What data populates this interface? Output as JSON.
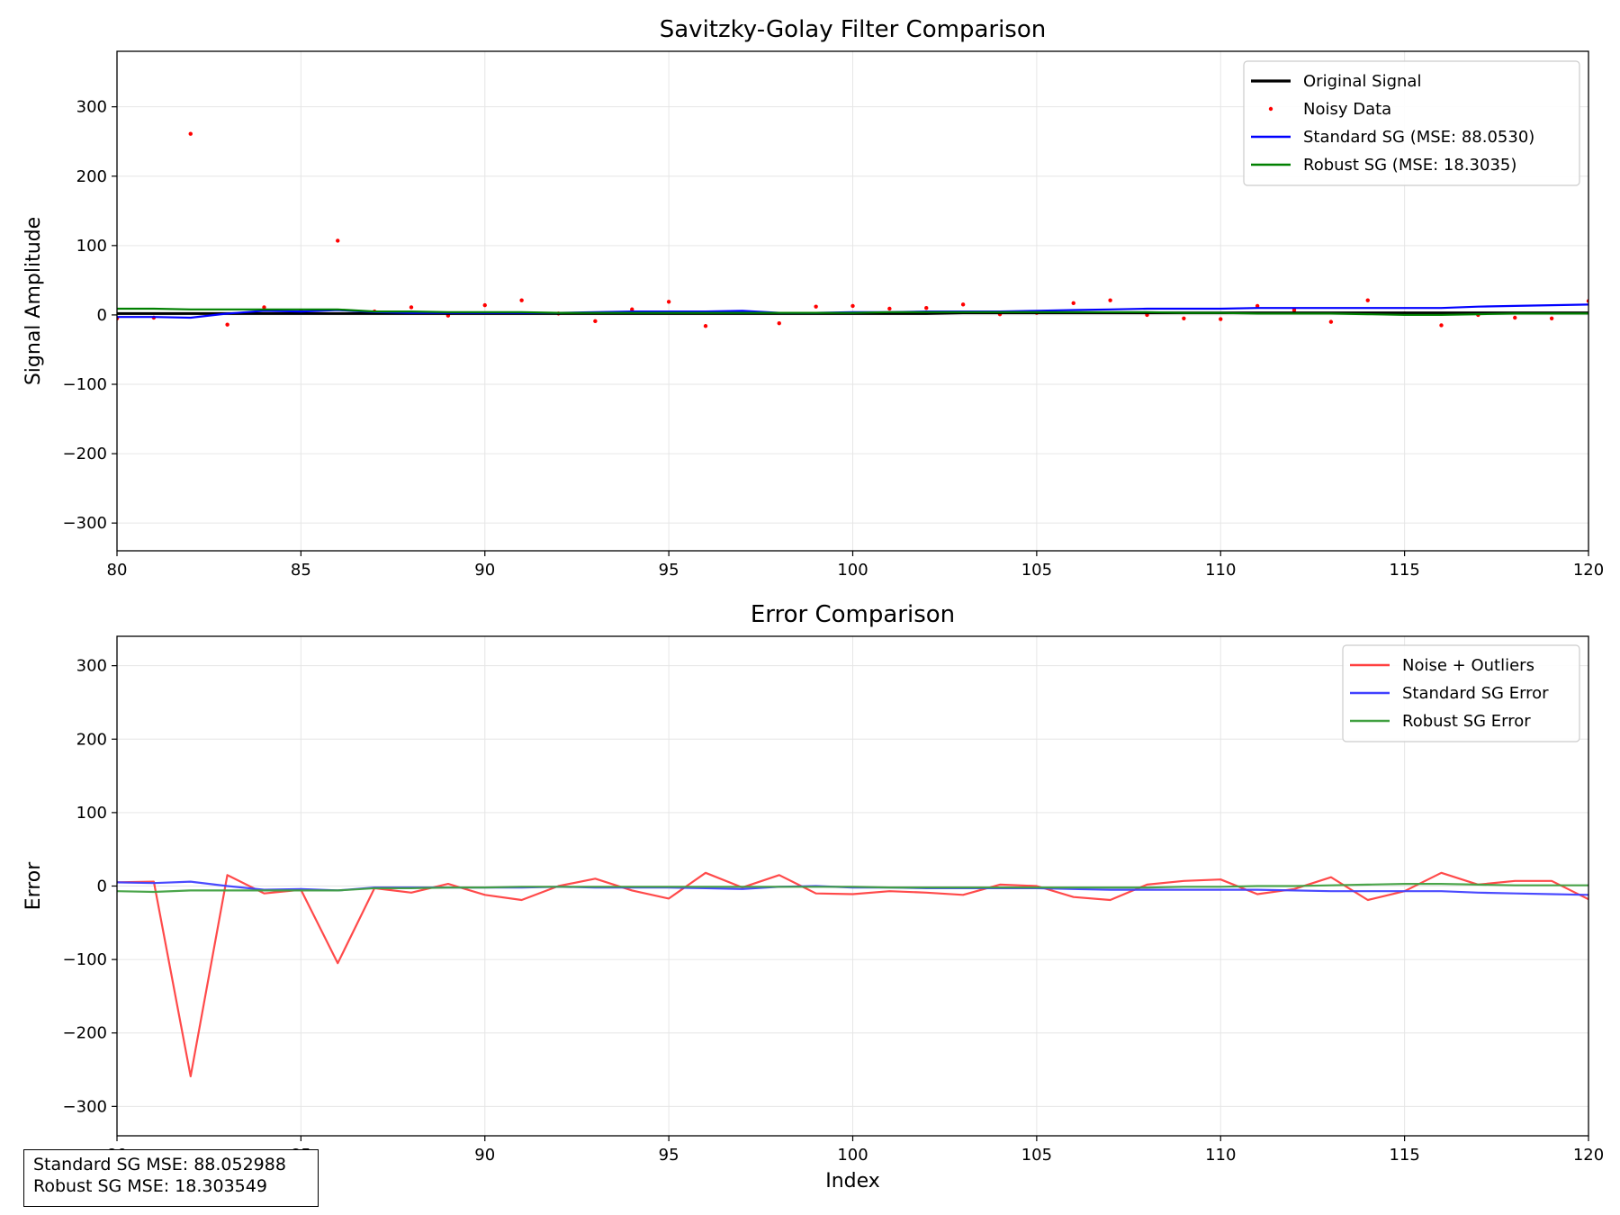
{
  "chart_data": [
    {
      "type": "line",
      "title": "Savitzky-Golay Filter Comparison",
      "xlabel": "",
      "ylabel": "Signal Amplitude",
      "xlim": [
        80,
        120
      ],
      "ylim": [
        -340,
        380
      ],
      "xticks": [
        "80",
        "85",
        "90",
        "95",
        "100",
        "105",
        "110",
        "115",
        "120"
      ],
      "yticks": [
        "−300",
        "−200",
        "−100",
        "0",
        "100",
        "200",
        "300"
      ],
      "grid": true,
      "legend_position": "upper right",
      "series": [
        {
          "name": "Original Signal",
          "color": "#000000",
          "style": "line",
          "x": [
            80,
            81,
            82,
            83,
            84,
            85,
            86,
            87,
            88,
            89,
            90,
            91,
            92,
            93,
            94,
            95,
            96,
            97,
            98,
            99,
            100,
            101,
            102,
            103,
            104,
            105,
            106,
            107,
            108,
            109,
            110,
            111,
            112,
            113,
            114,
            115,
            116,
            117,
            118,
            119,
            120
          ],
          "y": [
            2,
            2,
            2,
            2,
            2,
            2,
            2,
            2,
            2,
            2,
            2,
            2,
            2,
            2,
            2,
            2,
            2,
            2,
            2,
            2,
            2,
            2,
            2,
            3,
            3,
            3,
            3,
            3,
            3,
            3,
            3,
            3,
            3,
            3,
            3,
            3,
            3,
            3,
            3,
            3,
            3
          ]
        },
        {
          "name": "Noisy Data",
          "color": "#ff0000",
          "style": "points",
          "x": [
            80,
            81,
            82,
            83,
            84,
            85,
            86,
            87,
            88,
            89,
            90,
            91,
            92,
            93,
            94,
            95,
            96,
            97,
            98,
            99,
            100,
            101,
            102,
            103,
            104,
            105,
            106,
            107,
            108,
            109,
            110,
            111,
            112,
            113,
            114,
            115,
            116,
            117,
            118,
            119,
            120
          ],
          "y": [
            -5,
            -4,
            261,
            -14,
            11,
            6,
            107,
            5,
            11,
            -1,
            14,
            21,
            2,
            -9,
            8,
            19,
            -16,
            4,
            -12,
            12,
            13,
            9,
            10,
            15,
            1,
            3,
            17,
            21,
            0,
            -5,
            -6,
            13,
            7,
            -10,
            21,
            2,
            -15,
            0,
            -4,
            -5,
            20
          ]
        },
        {
          "name": "Standard SG (MSE: 88.0530)",
          "color": "#0000ff",
          "style": "line",
          "x": [
            80,
            81,
            82,
            83,
            84,
            85,
            86,
            87,
            88,
            89,
            90,
            91,
            92,
            93,
            94,
            95,
            96,
            97,
            98,
            99,
            100,
            101,
            102,
            103,
            104,
            105,
            106,
            107,
            108,
            109,
            110,
            111,
            112,
            113,
            114,
            115,
            116,
            117,
            118,
            119,
            120
          ],
          "y": [
            -3,
            -3,
            -4,
            2,
            6,
            5,
            7,
            4,
            3,
            3,
            3,
            3,
            3,
            4,
            5,
            5,
            5,
            6,
            3,
            3,
            4,
            4,
            5,
            5,
            5,
            6,
            7,
            8,
            9,
            9,
            9,
            10,
            10,
            10,
            10,
            10,
            10,
            12,
            13,
            14,
            15
          ]
        },
        {
          "name": "Robust SG (MSE: 18.3035)",
          "color": "#008000",
          "style": "line",
          "x": [
            80,
            81,
            82,
            83,
            84,
            85,
            86,
            87,
            88,
            89,
            90,
            91,
            92,
            93,
            94,
            95,
            96,
            97,
            98,
            99,
            100,
            101,
            102,
            103,
            104,
            105,
            106,
            107,
            108,
            109,
            110,
            111,
            112,
            113,
            114,
            115,
            116,
            117,
            118,
            119,
            120
          ],
          "y": [
            9,
            9,
            8,
            8,
            8,
            8,
            8,
            5,
            5,
            4,
            4,
            4,
            3,
            3,
            3,
            3,
            3,
            3,
            3,
            3,
            3,
            4,
            4,
            4,
            4,
            4,
            4,
            4,
            4,
            3,
            3,
            2,
            2,
            2,
            1,
            0,
            0,
            1,
            2,
            2,
            2
          ]
        }
      ]
    },
    {
      "type": "line",
      "title": "Error Comparison",
      "xlabel": "Index",
      "ylabel": "Error",
      "xlim": [
        80,
        120
      ],
      "ylim": [
        -340,
        340
      ],
      "xticks": [
        "80",
        "85",
        "90",
        "95",
        "100",
        "105",
        "110",
        "115",
        "120"
      ],
      "yticks": [
        "−300",
        "−200",
        "−100",
        "0",
        "100",
        "200",
        "300"
      ],
      "grid": true,
      "legend_position": "upper right",
      "series": [
        {
          "name": "Noise + Outliers",
          "color": "#ff4040",
          "style": "line",
          "x": [
            80,
            81,
            82,
            83,
            84,
            85,
            86,
            87,
            88,
            89,
            90,
            91,
            92,
            93,
            94,
            95,
            96,
            97,
            98,
            99,
            100,
            101,
            102,
            103,
            104,
            105,
            106,
            107,
            108,
            109,
            110,
            111,
            112,
            113,
            114,
            115,
            116,
            117,
            118,
            119,
            120
          ],
          "y": [
            5,
            6,
            -259,
            15,
            -10,
            -5,
            -105,
            -3,
            -9,
            3,
            -12,
            -19,
            0,
            10,
            -6,
            -17,
            18,
            -2,
            15,
            -10,
            -11,
            -7,
            -9,
            -12,
            2,
            0,
            -15,
            -19,
            2,
            7,
            9,
            -11,
            -4,
            12,
            -19,
            -7,
            18,
            2,
            7,
            7,
            -18
          ]
        },
        {
          "name": "Standard SG Error",
          "color": "#4040ff",
          "style": "line",
          "x": [
            80,
            81,
            82,
            83,
            84,
            85,
            86,
            87,
            88,
            89,
            90,
            91,
            92,
            93,
            94,
            95,
            96,
            97,
            98,
            99,
            100,
            101,
            102,
            103,
            104,
            105,
            106,
            107,
            108,
            109,
            110,
            111,
            112,
            113,
            114,
            115,
            116,
            117,
            118,
            119,
            120
          ],
          "y": [
            5,
            4,
            6,
            0,
            -5,
            -4,
            -6,
            -2,
            -2,
            -2,
            -2,
            -2,
            -1,
            -2,
            -2,
            -2,
            -3,
            -4,
            -1,
            0,
            -2,
            -2,
            -3,
            -3,
            -3,
            -3,
            -4,
            -5,
            -5,
            -5,
            -5,
            -5,
            -6,
            -7,
            -7,
            -7,
            -7,
            -9,
            -10,
            -11,
            -12
          ]
        },
        {
          "name": "Robust SG Error",
          "color": "#40a040",
          "style": "line",
          "x": [
            80,
            81,
            82,
            83,
            84,
            85,
            86,
            87,
            88,
            89,
            90,
            91,
            92,
            93,
            94,
            95,
            96,
            97,
            98,
            99,
            100,
            101,
            102,
            103,
            104,
            105,
            106,
            107,
            108,
            109,
            110,
            111,
            112,
            113,
            114,
            115,
            116,
            117,
            118,
            119,
            120
          ],
          "y": [
            -7,
            -8,
            -6,
            -6,
            -6,
            -6,
            -6,
            -3,
            -3,
            -2,
            -2,
            -1,
            -1,
            -1,
            -1,
            -1,
            -1,
            -1,
            -1,
            -1,
            -1,
            -2,
            -2,
            -2,
            -2,
            -2,
            -2,
            -2,
            -2,
            -1,
            -1,
            0,
            0,
            1,
            2,
            3,
            3,
            2,
            1,
            1,
            1
          ]
        }
      ]
    }
  ],
  "mse_box": {
    "line1": "Standard SG MSE: 88.052988",
    "line2": "Robust SG MSE: 18.303549"
  }
}
